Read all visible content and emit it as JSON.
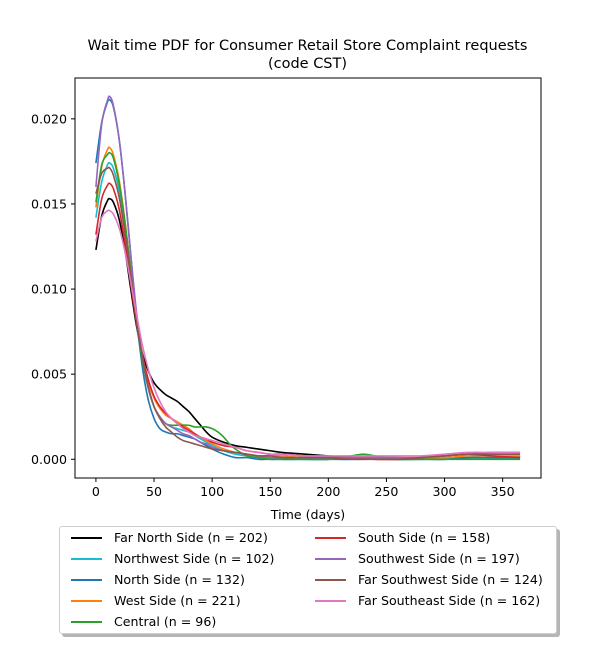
{
  "chart_data": {
    "type": "line",
    "title": "Wait time PDF for Consumer Retail Store Complaint  requests",
    "subtitle": "(code CST)",
    "xlabel": "Time (days)",
    "ylabel": "",
    "xlim": [
      -18,
      383
    ],
    "ylim": [
      -0.0011,
      0.0224
    ],
    "xticks": [
      0,
      50,
      100,
      150,
      200,
      250,
      300,
      350
    ],
    "yticks": [
      0.0,
      0.005,
      0.01,
      0.015,
      0.02
    ],
    "ytick_labels": [
      "0.000",
      "0.005",
      "0.010",
      "0.015",
      "0.020"
    ],
    "grid": false,
    "legend_position": "below",
    "legend_columns": 2,
    "series": [
      {
        "name": "Far North Side (n = 202)",
        "color": "#000000",
        "x": [
          0,
          5,
          10,
          12,
          15,
          20,
          25,
          30,
          35,
          40,
          45,
          50,
          55,
          60,
          65,
          70,
          75,
          80,
          85,
          90,
          95,
          100,
          110,
          120,
          130,
          140,
          150,
          160,
          180,
          200,
          220,
          240,
          260,
          280,
          300,
          320,
          340,
          365
        ],
        "values": [
          0.0123,
          0.0143,
          0.0152,
          0.0153,
          0.0151,
          0.0141,
          0.0123,
          0.01,
          0.0078,
          0.0062,
          0.0052,
          0.0045,
          0.0041,
          0.0038,
          0.0036,
          0.0034,
          0.0031,
          0.0028,
          0.0024,
          0.002,
          0.0016,
          0.0013,
          0.001,
          0.0008,
          0.0007,
          0.0006,
          0.0005,
          0.0004,
          0.0003,
          0.0002,
          0.0001,
          0.0001,
          0.0,
          0.0001,
          0.0002,
          0.0003,
          0.0002,
          0.0001
        ]
      },
      {
        "name": "Northwest Side (n = 102)",
        "color": "#17becf",
        "x": [
          0,
          5,
          10,
          12,
          15,
          20,
          25,
          30,
          35,
          40,
          45,
          50,
          55,
          60,
          65,
          70,
          75,
          80,
          85,
          90,
          95,
          100,
          110,
          120,
          130,
          140,
          150,
          160,
          180,
          200,
          220,
          240,
          260,
          280,
          300,
          320,
          340,
          365
        ],
        "values": [
          0.0142,
          0.0163,
          0.0173,
          0.0174,
          0.0171,
          0.0158,
          0.0136,
          0.0108,
          0.008,
          0.0058,
          0.0042,
          0.0031,
          0.0025,
          0.0021,
          0.0019,
          0.0018,
          0.0017,
          0.0016,
          0.0014,
          0.0012,
          0.001,
          0.0008,
          0.0005,
          0.0003,
          0.0002,
          0.0001,
          0.0001,
          0.0,
          0.0,
          0.0,
          0.0001,
          0.0001,
          0.0001,
          0.0,
          0.0001,
          0.0001,
          0.0001,
          0.0001
        ]
      },
      {
        "name": "North Side (n = 132)",
        "color": "#1f77b4",
        "x": [
          0,
          5,
          10,
          12,
          15,
          20,
          25,
          30,
          35,
          40,
          45,
          50,
          55,
          60,
          65,
          70,
          75,
          80,
          85,
          90,
          95,
          100,
          110,
          120,
          130,
          140,
          150,
          160,
          180,
          200,
          220,
          240,
          260,
          280,
          300,
          320,
          340,
          365
        ],
        "values": [
          0.0174,
          0.0198,
          0.021,
          0.0211,
          0.0207,
          0.0188,
          0.0157,
          0.012,
          0.0083,
          0.0054,
          0.0035,
          0.0024,
          0.0018,
          0.0016,
          0.0015,
          0.0015,
          0.0014,
          0.0013,
          0.0012,
          0.001,
          0.0008,
          0.0006,
          0.0003,
          0.0001,
          0.0001,
          0.0,
          0.0,
          0.0,
          0.0,
          0.0,
          0.0,
          0.0001,
          0.0,
          0.0,
          0.0,
          0.0001,
          0.0001,
          0.0001
        ]
      },
      {
        "name": "West Side (n = 221)",
        "color": "#ff7f0e",
        "x": [
          0,
          5,
          10,
          12,
          15,
          20,
          25,
          30,
          35,
          40,
          45,
          50,
          55,
          60,
          65,
          70,
          75,
          80,
          85,
          90,
          95,
          100,
          110,
          120,
          130,
          140,
          150,
          160,
          180,
          200,
          220,
          240,
          260,
          280,
          300,
          320,
          340,
          365
        ],
        "values": [
          0.0148,
          0.0172,
          0.0182,
          0.0183,
          0.0179,
          0.0164,
          0.014,
          0.0111,
          0.0083,
          0.0061,
          0.0046,
          0.0036,
          0.003,
          0.0026,
          0.0024,
          0.0022,
          0.002,
          0.0018,
          0.0015,
          0.0013,
          0.0011,
          0.0009,
          0.0006,
          0.0004,
          0.0003,
          0.0002,
          0.0002,
          0.0002,
          0.0001,
          0.0001,
          0.0001,
          0.0001,
          0.0001,
          0.0001,
          0.0001,
          0.0002,
          0.0002,
          0.0002
        ]
      },
      {
        "name": "Central (n = 96)",
        "color": "#2ca02c",
        "x": [
          0,
          5,
          10,
          12,
          15,
          20,
          25,
          30,
          35,
          40,
          45,
          50,
          55,
          60,
          65,
          70,
          75,
          80,
          85,
          90,
          95,
          100,
          105,
          110,
          115,
          120,
          130,
          140,
          150,
          160,
          180,
          200,
          220,
          230,
          240,
          260,
          280,
          300,
          320,
          340,
          365
        ],
        "values": [
          0.0151,
          0.0173,
          0.0179,
          0.018,
          0.0177,
          0.0162,
          0.0139,
          0.011,
          0.0082,
          0.0058,
          0.0042,
          0.0031,
          0.0025,
          0.0021,
          0.002,
          0.002,
          0.002,
          0.002,
          0.0019,
          0.0019,
          0.0019,
          0.0018,
          0.0016,
          0.0013,
          0.0009,
          0.0006,
          0.0002,
          0.0001,
          0.0,
          0.0,
          0.0,
          0.0,
          0.0002,
          0.0003,
          0.0002,
          0.0,
          0.0,
          0.0,
          0.0,
          0.0,
          0.0
        ]
      },
      {
        "name": "South Side (n = 158)",
        "color": "#d62728",
        "x": [
          0,
          5,
          10,
          12,
          15,
          20,
          25,
          30,
          35,
          40,
          45,
          50,
          55,
          60,
          65,
          70,
          75,
          80,
          85,
          90,
          95,
          100,
          110,
          120,
          130,
          140,
          150,
          160,
          180,
          200,
          220,
          240,
          260,
          280,
          300,
          320,
          340,
          365
        ],
        "values": [
          0.0132,
          0.0153,
          0.0161,
          0.0162,
          0.0159,
          0.0147,
          0.0127,
          0.0103,
          0.008,
          0.0061,
          0.0047,
          0.0037,
          0.0031,
          0.0027,
          0.0024,
          0.0021,
          0.0019,
          0.0017,
          0.0015,
          0.0013,
          0.0012,
          0.001,
          0.0008,
          0.0007,
          0.0005,
          0.0004,
          0.0003,
          0.0003,
          0.0002,
          0.0001,
          0.0001,
          0.0,
          0.0,
          0.0001,
          0.0002,
          0.0003,
          0.0002,
          0.0001
        ]
      },
      {
        "name": "Southwest Side (n = 197)",
        "color": "#9467bd",
        "x": [
          0,
          5,
          10,
          12,
          15,
          20,
          25,
          30,
          35,
          40,
          45,
          50,
          55,
          60,
          65,
          70,
          75,
          80,
          85,
          90,
          95,
          100,
          110,
          120,
          130,
          140,
          150,
          160,
          180,
          200,
          220,
          240,
          260,
          280,
          300,
          320,
          340,
          365
        ],
        "values": [
          0.016,
          0.0197,
          0.0211,
          0.0213,
          0.0208,
          0.0188,
          0.0157,
          0.012,
          0.0086,
          0.006,
          0.0042,
          0.0031,
          0.0025,
          0.0021,
          0.0019,
          0.0017,
          0.0015,
          0.0014,
          0.0012,
          0.001,
          0.0009,
          0.0007,
          0.0005,
          0.0004,
          0.0003,
          0.0002,
          0.0001,
          0.0001,
          0.0001,
          0.0001,
          0.0001,
          0.0001,
          0.0001,
          0.0001,
          0.0002,
          0.0003,
          0.0004,
          0.0004
        ]
      },
      {
        "name": "Far Southwest Side (n = 124)",
        "color": "#8c564b",
        "x": [
          0,
          5,
          10,
          12,
          15,
          20,
          25,
          30,
          35,
          40,
          45,
          50,
          55,
          60,
          65,
          70,
          75,
          80,
          85,
          90,
          95,
          100,
          110,
          120,
          130,
          140,
          150,
          160,
          180,
          200,
          220,
          240,
          260,
          280,
          300,
          320,
          340,
          365
        ],
        "values": [
          0.0156,
          0.0168,
          0.0171,
          0.0171,
          0.0167,
          0.0154,
          0.0133,
          0.0108,
          0.0082,
          0.006,
          0.0043,
          0.0031,
          0.0024,
          0.0019,
          0.0016,
          0.0013,
          0.0011,
          0.001,
          0.0009,
          0.0008,
          0.0007,
          0.0006,
          0.0005,
          0.0004,
          0.0003,
          0.0002,
          0.0002,
          0.0001,
          0.0001,
          0.0001,
          0.0,
          0.0,
          0.0,
          0.0001,
          0.0002,
          0.0003,
          0.0003,
          0.0003
        ]
      },
      {
        "name": "Far Southeast Side (n = 162)",
        "color": "#e377c2",
        "x": [
          0,
          5,
          10,
          12,
          15,
          20,
          25,
          30,
          35,
          40,
          45,
          50,
          55,
          60,
          65,
          70,
          75,
          80,
          85,
          90,
          95,
          100,
          110,
          120,
          130,
          140,
          150,
          160,
          180,
          200,
          220,
          240,
          260,
          280,
          300,
          320,
          340,
          365
        ],
        "values": [
          0.0128,
          0.0142,
          0.0146,
          0.0146,
          0.0144,
          0.0136,
          0.0122,
          0.0104,
          0.0085,
          0.0067,
          0.0053,
          0.0042,
          0.0034,
          0.0028,
          0.0024,
          0.0021,
          0.0018,
          0.0016,
          0.0014,
          0.0013,
          0.0012,
          0.0011,
          0.0009,
          0.0007,
          0.0005,
          0.0004,
          0.0003,
          0.0003,
          0.0002,
          0.0002,
          0.0002,
          0.0002,
          0.0002,
          0.0002,
          0.0003,
          0.0004,
          0.0004,
          0.0004
        ]
      }
    ]
  }
}
